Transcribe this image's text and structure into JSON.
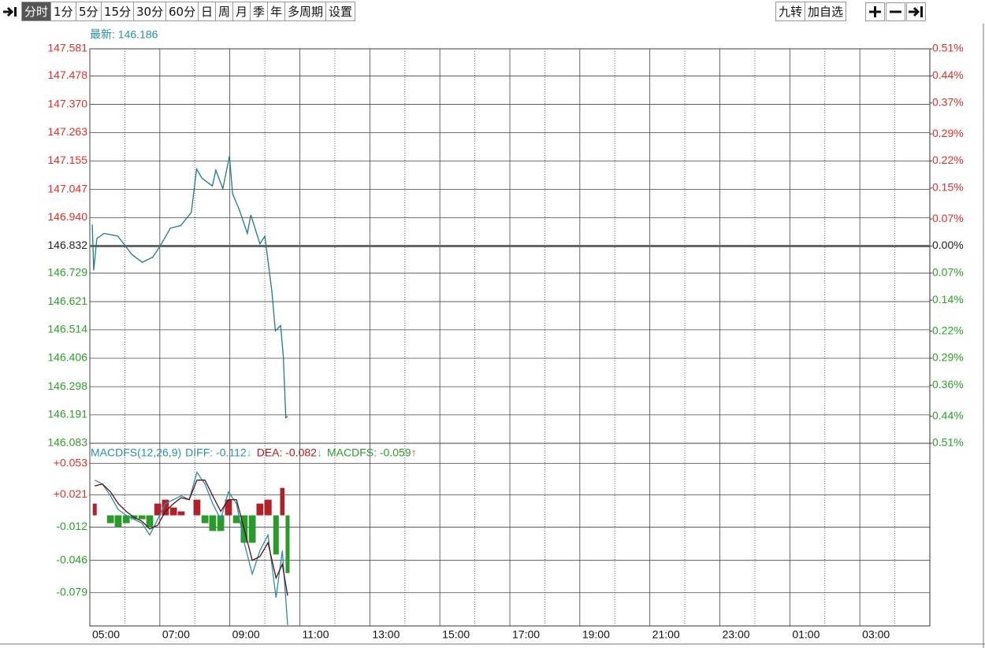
{
  "toolbar": {
    "left": [
      "分时",
      "1分",
      "5分",
      "15分",
      "30分",
      "60分",
      "日",
      "周",
      "月",
      "季",
      "年",
      "多周期",
      "设置"
    ],
    "right": [
      "九转",
      "加自选"
    ]
  },
  "chart_data": [
    {
      "type": "line",
      "subtitle": "最新: 146.186",
      "x": [
        0.07,
        0.11,
        0.2,
        0.4,
        0.8,
        1.2,
        1.5,
        1.8,
        2.0,
        2.3,
        2.6,
        2.9,
        3.05,
        3.2,
        3.5,
        3.6,
        3.8,
        3.99,
        4.08,
        4.27,
        4.5,
        4.6,
        4.86,
        5.0,
        5.2,
        5.3,
        5.45,
        5.53,
        5.6,
        5.65
      ],
      "values": [
        146.914,
        146.74,
        146.86,
        146.88,
        146.87,
        146.8,
        146.77,
        146.79,
        146.83,
        146.9,
        146.91,
        146.96,
        147.125,
        147.09,
        147.06,
        147.12,
        147.05,
        147.174,
        147.03,
        146.97,
        146.88,
        146.95,
        146.84,
        146.87,
        146.66,
        146.51,
        146.53,
        146.41,
        146.18,
        146.186
      ],
      "color": "#1f7a8a",
      "baseline": 146.832,
      "up_color": "#e0302a",
      "down_color": "#2a9f2a",
      "baseline_color": "#222222",
      "xlim": [
        0,
        24
      ],
      "xticks": [
        {
          "value": 0,
          "label": "05:00"
        },
        {
          "value": 2,
          "label": "07:00"
        },
        {
          "value": 4,
          "label": "09:00"
        },
        {
          "value": 6,
          "label": "11:00"
        },
        {
          "value": 8,
          "label": "13:00"
        },
        {
          "value": 10,
          "label": "15:00"
        },
        {
          "value": 12,
          "label": "17:00"
        },
        {
          "value": 14,
          "label": "19:00"
        },
        {
          "value": 16,
          "label": "21:00"
        },
        {
          "value": 18,
          "label": "23:00"
        },
        {
          "value": 20,
          "label": "01:00"
        },
        {
          "value": 22,
          "label": "03:00"
        }
      ],
      "xminorticks": [
        1,
        3,
        5,
        7,
        9,
        11,
        13,
        15,
        17,
        19,
        21,
        23
      ],
      "ylim": [
        146.083,
        147.581
      ],
      "yticks": [
        147.581,
        147.478,
        {
          "value": 147.37,
          "label": "147.370"
        },
        147.263,
        147.155,
        147.047,
        {
          "value": 146.94,
          "label": "146.940"
        },
        146.832,
        146.729,
        146.621,
        146.514,
        146.406,
        146.298,
        146.191,
        146.083
      ],
      "y2lim": [
        -0.51,
        0.51
      ],
      "y2ticks": [
        {
          "value": 0.51,
          "label": "0.51%"
        },
        {
          "value": 0.44,
          "label": "0.44%"
        },
        {
          "value": 0.37,
          "label": "0.37%"
        },
        {
          "value": 0.29,
          "label": "0.29%"
        },
        {
          "value": 0.22,
          "label": "0.22%"
        },
        {
          "value": 0.15,
          "label": "0.15%"
        },
        {
          "value": 0.07,
          "label": "0.07%"
        },
        {
          "value": 0,
          "label": "0.00%"
        },
        {
          "value": -0.07,
          "label": "0.07%"
        },
        {
          "value": -0.14,
          "label": "0.14%"
        },
        {
          "value": -0.22,
          "label": "0.22%"
        },
        {
          "value": -0.29,
          "label": "0.29%"
        },
        {
          "value": -0.36,
          "label": "0.36%"
        },
        {
          "value": -0.44,
          "label": "0.44%"
        },
        {
          "value": -0.51,
          "label": "0.51%"
        }
      ]
    },
    {
      "type": "macd",
      "title": "MACDFS(12,26,9)",
      "legend": [
        "DIFF: -0.112",
        "DEA: -0.082",
        "MACDFS: -0.059"
      ],
      "legend_arrows": [
        "↓",
        "↓",
        "↑"
      ],
      "legend_colors": [
        "#2a8fa6",
        "#b01818",
        "#2a9a2a"
      ],
      "arrow_colors": [
        "#3cc8e8",
        "#3cc8e8",
        "#f04040"
      ],
      "x": [
        0.14,
        0.36,
        0.59,
        0.81,
        1.04,
        1.26,
        1.49,
        1.71,
        1.94,
        2.16,
        2.39,
        2.61,
        2.84,
        3.06,
        3.29,
        3.51,
        3.74,
        3.96,
        4.19,
        4.41,
        4.64,
        4.86,
        5.09,
        5.32,
        5.5,
        5.65
      ],
      "series": [
        {
          "color": "#2a8fa6",
          "values": [
            0.036,
            0.032,
            0.02,
            0.006,
            0,
            -0.004,
            -0.008,
            -0.02,
            -0.004,
            0.012,
            0.016,
            0.02,
            0.016,
            0.044,
            0.032,
            0.012,
            -0.004,
            0.024,
            0.012,
            -0.028,
            -0.06,
            -0.036,
            -0.02,
            -0.084,
            -0.036,
            -0.112
          ]
        },
        {
          "color": "#5a1010",
          "values": [
            0.03,
            0.032,
            0.024,
            0.012,
            0.004,
            -0.002,
            -0.006,
            -0.014,
            -0.01,
            0.004,
            0.012,
            0.018,
            0.016,
            0.036,
            0.036,
            0.02,
            0.004,
            0.016,
            0.016,
            -0.014,
            -0.046,
            -0.042,
            -0.028,
            -0.064,
            -0.05,
            -0.082
          ]
        },
        {
          "type": "histogram",
          "up_color": "#b0222a",
          "down_color": "#2a9a2a",
          "values": [
            0.012,
            0,
            -0.008,
            -0.012,
            -0.008,
            -0.004,
            -0.004,
            -0.012,
            0.012,
            0.016,
            0.008,
            0.004,
            0,
            0.016,
            -0.008,
            -0.016,
            -0.016,
            0.016,
            -0.008,
            -0.028,
            -0.028,
            0.012,
            0.016,
            -0.04,
            0.028,
            -0.059
          ]
        }
      ],
      "ylim": [
        -0.113,
        0.072
      ],
      "yticks": [
        {
          "value": 0.053,
          "label": "+0.053"
        },
        {
          "value": 0.021,
          "label": "+0.021"
        },
        -0.012,
        -0.046,
        -0.079
      ]
    }
  ]
}
